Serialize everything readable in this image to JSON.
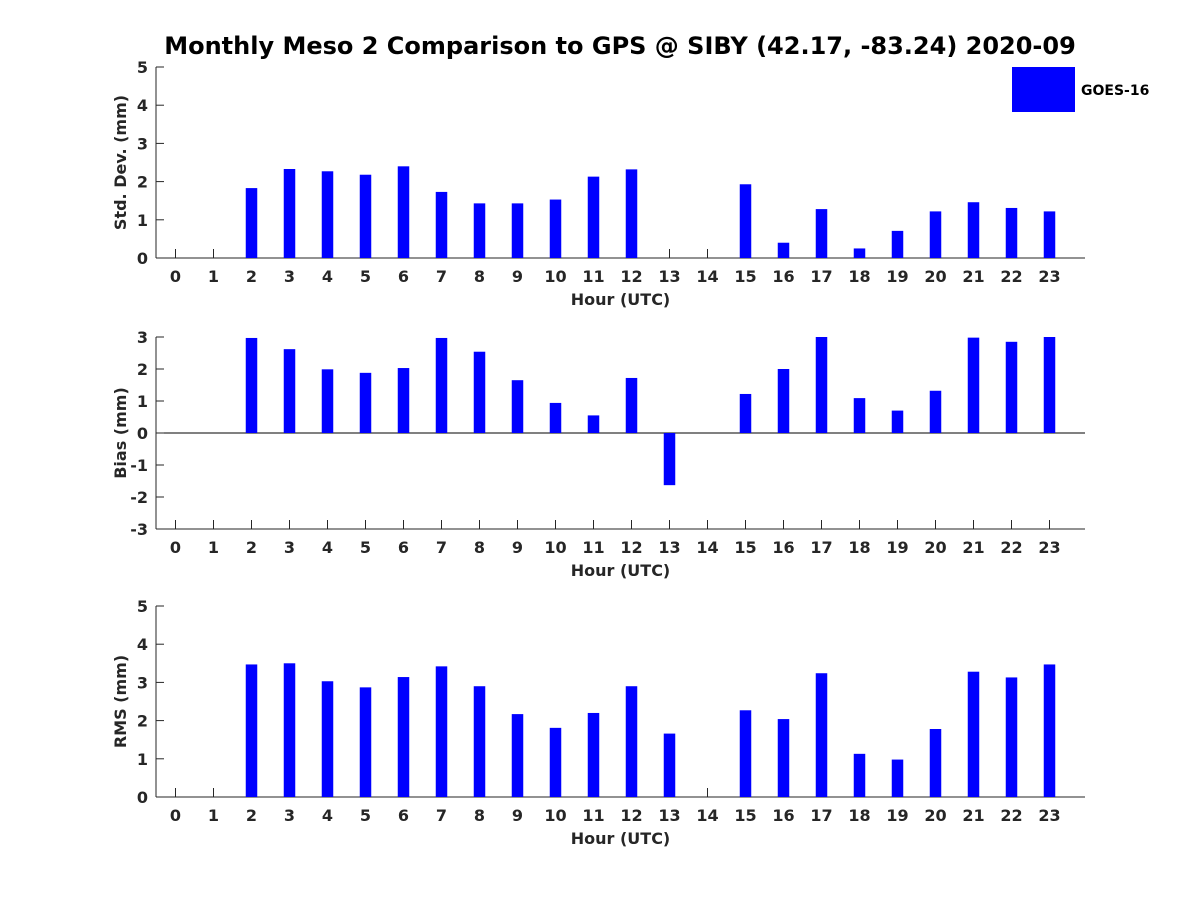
{
  "chart_data": {
    "title": "Monthly Meso 2 Comparison to GPS @ SIBY (42.17, -83.24) 2020-09",
    "colors": {
      "bar": "#0000ff",
      "axis": "#262626",
      "background": "#ffffff"
    },
    "legend": {
      "label": "GOES-16",
      "placement": "top-right"
    },
    "grid": false,
    "panels": [
      {
        "type": "bar",
        "ylabel": "Std. Dev. (mm)",
        "xlabel": "Hour (UTC)",
        "ylim": [
          0,
          5
        ],
        "yticks": [
          "0",
          "1",
          "2",
          "3",
          "4",
          "5"
        ],
        "categories": [
          "0",
          "1",
          "2",
          "3",
          "4",
          "5",
          "6",
          "7",
          "8",
          "9",
          "10",
          "11",
          "12",
          "13",
          "14",
          "15",
          "16",
          "17",
          "18",
          "19",
          "20",
          "21",
          "22",
          "23"
        ],
        "values": [
          null,
          null,
          1.83,
          2.33,
          2.27,
          2.18,
          2.4,
          1.73,
          1.43,
          1.43,
          1.53,
          2.13,
          2.32,
          null,
          null,
          1.93,
          0.4,
          1.28,
          0.25,
          0.71,
          1.22,
          1.46,
          1.31,
          1.22
        ]
      },
      {
        "type": "bar",
        "ylabel": "Bias (mm)",
        "xlabel": "Hour (UTC)",
        "ylim": [
          -3,
          3
        ],
        "yticks": [
          "-3",
          "-2",
          "-1",
          "0",
          "1",
          "2",
          "3"
        ],
        "categories": [
          "0",
          "1",
          "2",
          "3",
          "4",
          "5",
          "6",
          "7",
          "8",
          "9",
          "10",
          "11",
          "12",
          "13",
          "14",
          "15",
          "16",
          "17",
          "18",
          "19",
          "20",
          "21",
          "22",
          "23"
        ],
        "values": [
          null,
          null,
          2.97,
          2.62,
          1.99,
          1.88,
          2.03,
          2.97,
          2.54,
          1.65,
          0.94,
          0.55,
          1.72,
          -1.63,
          null,
          1.22,
          2.0,
          3.0,
          1.09,
          0.7,
          1.32,
          2.98,
          2.85,
          3.0
        ]
      },
      {
        "type": "bar",
        "ylabel": "RMS (mm)",
        "xlabel": "Hour (UTC)",
        "ylim": [
          0,
          5
        ],
        "yticks": [
          "0",
          "1",
          "2",
          "3",
          "4",
          "5"
        ],
        "categories": [
          "0",
          "1",
          "2",
          "3",
          "4",
          "5",
          "6",
          "7",
          "8",
          "9",
          "10",
          "11",
          "12",
          "13",
          "14",
          "15",
          "16",
          "17",
          "18",
          "19",
          "20",
          "21",
          "22",
          "23"
        ],
        "values": [
          null,
          null,
          3.47,
          3.5,
          3.03,
          2.87,
          3.14,
          3.42,
          2.9,
          2.17,
          1.81,
          2.2,
          2.9,
          1.66,
          null,
          2.27,
          2.04,
          3.24,
          1.13,
          0.98,
          1.78,
          3.28,
          3.13,
          3.47
        ]
      }
    ]
  }
}
